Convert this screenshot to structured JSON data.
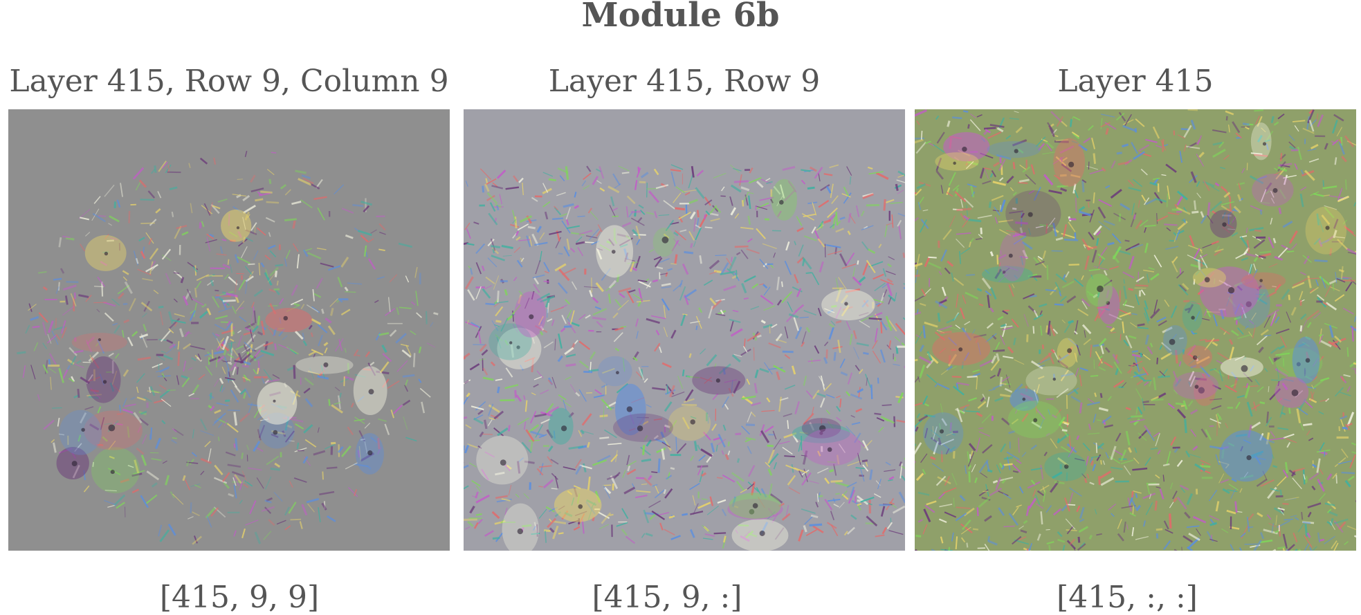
{
  "figure": {
    "title": "Module 6b",
    "panels": [
      {
        "heading": "Layer 415, Row 9, Column 9",
        "index_label": "[415, 9, 9]",
        "background": "#8f8f8f"
      },
      {
        "heading": "Layer 415, Row 9",
        "index_label": "[415, 9, :]",
        "background": "#a0a0a8"
      },
      {
        "heading": "Layer 415",
        "index_label": "[415, :, :]",
        "background": "#8fa06a"
      }
    ],
    "palette": [
      "#c25cc8",
      "#7fd65a",
      "#e8d36a",
      "#5a8ee0",
      "#e36a6a",
      "#f2f2e0",
      "#6b3a7a",
      "#3fb0a0"
    ]
  }
}
